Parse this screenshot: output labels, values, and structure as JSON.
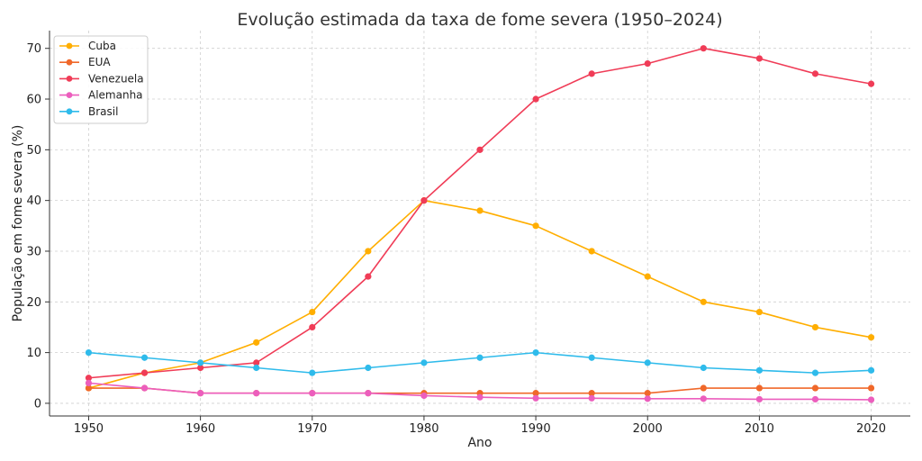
{
  "chart_data": {
    "type": "line",
    "title": "Evolução estimada da taxa de fome severa (1950–2024)",
    "xlabel": "Ano",
    "ylabel": "População em fome severa (%)",
    "x": [
      1950,
      1955,
      1960,
      1965,
      1970,
      1975,
      1980,
      1985,
      1990,
      1995,
      2000,
      2005,
      2010,
      2015,
      2020
    ],
    "xlim": [
      1946.5,
      2023.5
    ],
    "ylim": [
      -2.5,
      73.5
    ],
    "xticks": [
      1950,
      1960,
      1970,
      1980,
      1990,
      2000,
      2010,
      2020
    ],
    "yticks": [
      0,
      10,
      20,
      30,
      40,
      50,
      60,
      70
    ],
    "grid": true,
    "legend_position": "top-left",
    "series": [
      {
        "name": "Cuba",
        "color": "#ffae00",
        "values": [
          3,
          6,
          8,
          12,
          18,
          30,
          40,
          38,
          35,
          30,
          25,
          20,
          18,
          15,
          13
        ]
      },
      {
        "name": "EUA",
        "color": "#f0682a",
        "values": [
          3,
          3,
          2,
          2,
          2,
          2,
          2,
          2,
          2,
          2,
          2,
          3,
          3,
          3,
          3
        ]
      },
      {
        "name": "Venezuela",
        "color": "#f03c57",
        "values": [
          5,
          6,
          7,
          8,
          15,
          25,
          40,
          50,
          60,
          65,
          67,
          70,
          68,
          65,
          63
        ]
      },
      {
        "name": "Alemanha",
        "color": "#ec5ebd",
        "values": [
          4,
          3,
          2,
          2,
          2,
          2,
          1.5,
          1.2,
          1,
          1,
          0.9,
          0.9,
          0.8,
          0.8,
          0.7
        ]
      },
      {
        "name": "Brasil",
        "color": "#2fbbeb",
        "values": [
          10,
          9,
          8,
          7,
          6,
          7,
          8,
          9,
          10,
          9,
          8,
          7,
          6.5,
          6,
          6.5
        ]
      }
    ]
  }
}
